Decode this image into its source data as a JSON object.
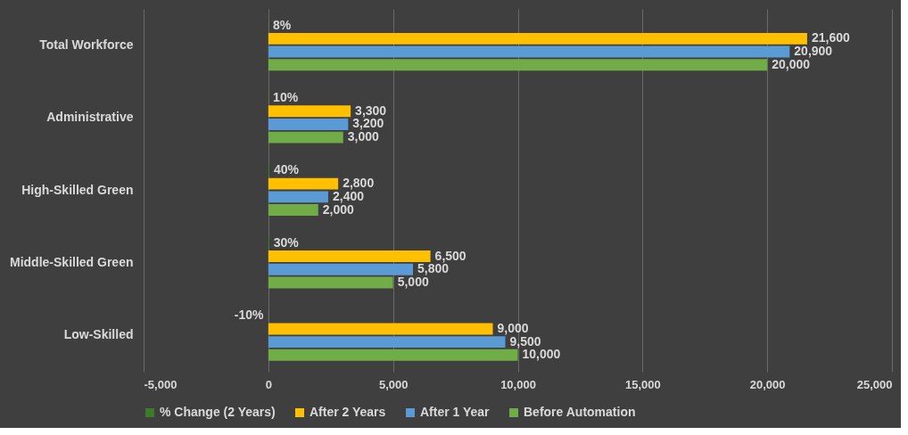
{
  "chart_data": {
    "type": "bar",
    "orientation": "horizontal",
    "categories": [
      "Total Workforce",
      "Administrative",
      "High-Skilled Green",
      "Middle-Skilled Green",
      "Low-Skilled"
    ],
    "series": [
      {
        "name": "% Change (2 Years)",
        "color": "#3e7b27",
        "values": [
          8,
          10,
          40,
          30,
          -10
        ],
        "value_labels": [
          "8%",
          "10%",
          "40%",
          "30%",
          "-10%"
        ]
      },
      {
        "name": "After 2 Years",
        "color": "#ffc000",
        "values": [
          21600,
          3300,
          2800,
          6500,
          9000
        ],
        "value_labels": [
          "21,600",
          "3,300",
          "2,800",
          "6,500",
          "9,000"
        ]
      },
      {
        "name": "After 1 Year",
        "color": "#5b9bd5",
        "values": [
          20900,
          3200,
          2400,
          5800,
          9500
        ],
        "value_labels": [
          "20,900",
          "3,200",
          "2,400",
          "5,800",
          "9,500"
        ]
      },
      {
        "name": "Before Automation",
        "color": "#70ad47",
        "values": [
          20000,
          3000,
          2000,
          5000,
          10000
        ],
        "value_labels": [
          "20,000",
          "3,000",
          "2,000",
          "5,000",
          "10,000"
        ]
      }
    ],
    "xlim": [
      -5000,
      25000
    ],
    "xticks": [
      {
        "value": -5000,
        "label": "-5,000"
      },
      0,
      {
        "value": 5000,
        "label": "5,000"
      },
      {
        "value": 10000,
        "label": "10,000"
      },
      {
        "value": 15000,
        "label": "15,000"
      },
      {
        "value": 20000,
        "label": "20,000"
      },
      {
        "value": 25000,
        "label": "25,000"
      }
    ],
    "grid": "x",
    "legend": "bottom"
  }
}
